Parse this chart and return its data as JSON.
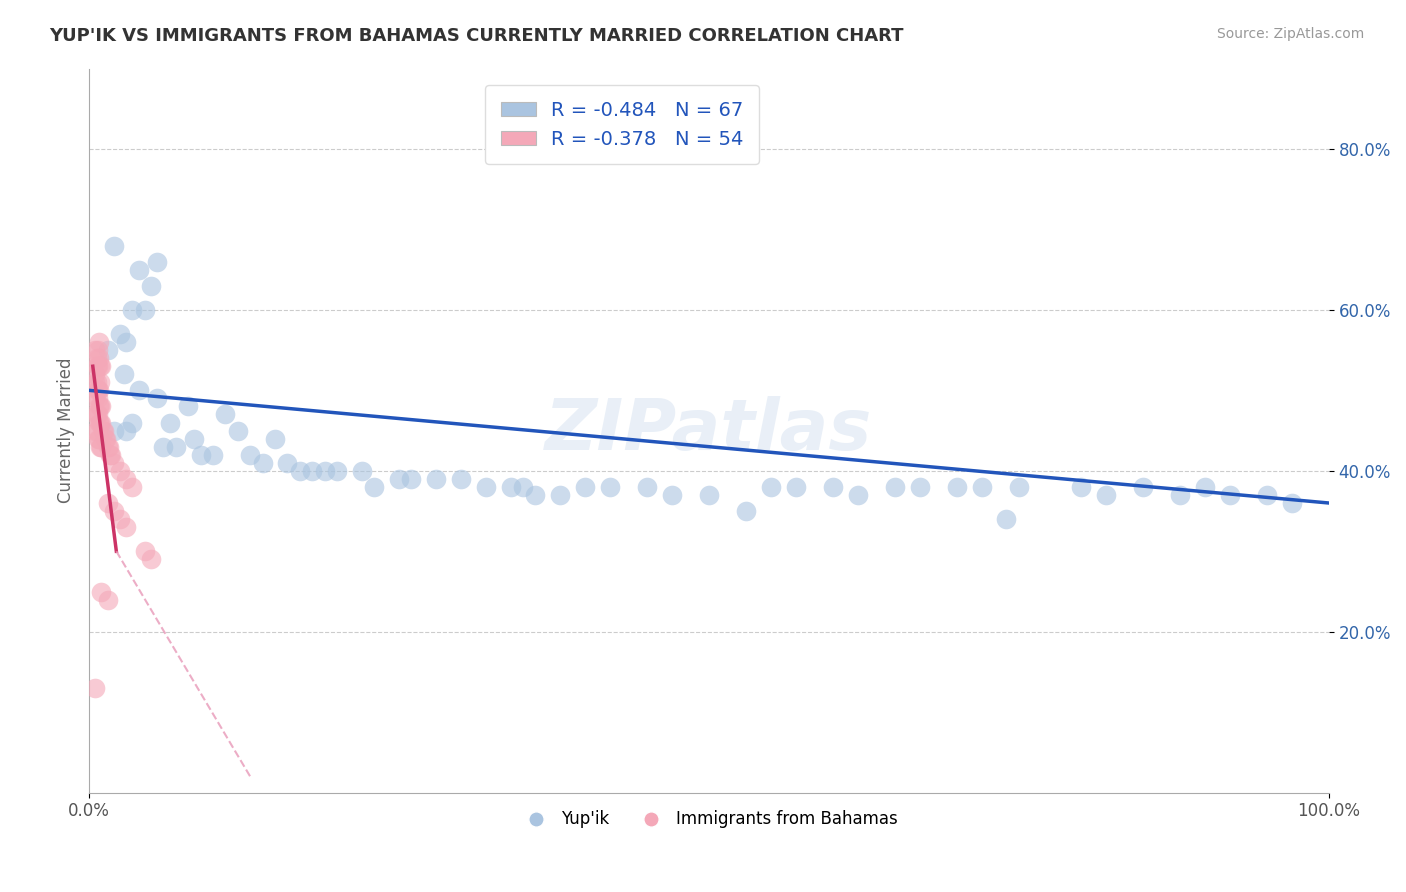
{
  "title": "YUP'IK VS IMMIGRANTS FROM BAHAMAS CURRENTLY MARRIED CORRELATION CHART",
  "source": "Source: ZipAtlas.com",
  "ylabel": "Currently Married",
  "legend_blue_r": "-0.484",
  "legend_blue_n": "67",
  "legend_pink_r": "-0.378",
  "legend_pink_n": "54",
  "legend_label_blue": "Yup'ik",
  "legend_label_pink": "Immigrants from Bahamas",
  "blue_color": "#aac4e0",
  "pink_color": "#f4a8b8",
  "blue_line_color": "#2255bb",
  "pink_line_color": "#cc3366",
  "pink_line_dashed_color": "#e899b8",
  "title_color": "#333333",
  "label_color": "#2255bb",
  "scatter_blue": [
    [
      2.0,
      68
    ],
    [
      4.0,
      65
    ],
    [
      5.0,
      63
    ],
    [
      5.5,
      66
    ],
    [
      3.5,
      60
    ],
    [
      4.5,
      60
    ],
    [
      2.5,
      57
    ],
    [
      3.0,
      56
    ],
    [
      1.5,
      55
    ],
    [
      2.8,
      52
    ],
    [
      4.0,
      50
    ],
    [
      5.5,
      49
    ],
    [
      8.0,
      48
    ],
    [
      11.0,
      47
    ],
    [
      3.5,
      46
    ],
    [
      6.5,
      46
    ],
    [
      2.0,
      45
    ],
    [
      3.0,
      45
    ],
    [
      12.0,
      45
    ],
    [
      8.5,
      44
    ],
    [
      15.0,
      44
    ],
    [
      6.0,
      43
    ],
    [
      7.0,
      43
    ],
    [
      9.0,
      42
    ],
    [
      10.0,
      42
    ],
    [
      13.0,
      42
    ],
    [
      14.0,
      41
    ],
    [
      16.0,
      41
    ],
    [
      17.0,
      40
    ],
    [
      18.0,
      40
    ],
    [
      19.0,
      40
    ],
    [
      20.0,
      40
    ],
    [
      22.0,
      40
    ],
    [
      25.0,
      39
    ],
    [
      26.0,
      39
    ],
    [
      28.0,
      39
    ],
    [
      30.0,
      39
    ],
    [
      23.0,
      38
    ],
    [
      32.0,
      38
    ],
    [
      34.0,
      38
    ],
    [
      35.0,
      38
    ],
    [
      40.0,
      38
    ],
    [
      42.0,
      38
    ],
    [
      45.0,
      38
    ],
    [
      55.0,
      38
    ],
    [
      57.0,
      38
    ],
    [
      60.0,
      38
    ],
    [
      65.0,
      38
    ],
    [
      67.0,
      38
    ],
    [
      70.0,
      38
    ],
    [
      72.0,
      38
    ],
    [
      75.0,
      38
    ],
    [
      80.0,
      38
    ],
    [
      85.0,
      38
    ],
    [
      90.0,
      38
    ],
    [
      36.0,
      37
    ],
    [
      38.0,
      37
    ],
    [
      47.0,
      37
    ],
    [
      50.0,
      37
    ],
    [
      62.0,
      37
    ],
    [
      82.0,
      37
    ],
    [
      88.0,
      37
    ],
    [
      92.0,
      37
    ],
    [
      95.0,
      37
    ],
    [
      97.0,
      36
    ],
    [
      53.0,
      35
    ],
    [
      74.0,
      34
    ]
  ],
  "scatter_pink": [
    [
      0.5,
      55
    ],
    [
      0.6,
      54
    ],
    [
      0.7,
      55
    ],
    [
      0.8,
      56
    ],
    [
      0.5,
      52
    ],
    [
      0.6,
      53
    ],
    [
      0.7,
      53
    ],
    [
      0.8,
      54
    ],
    [
      0.9,
      53
    ],
    [
      1.0,
      53
    ],
    [
      0.5,
      51
    ],
    [
      0.6,
      51
    ],
    [
      0.7,
      50
    ],
    [
      0.8,
      50
    ],
    [
      0.9,
      51
    ],
    [
      0.5,
      49
    ],
    [
      0.6,
      50
    ],
    [
      0.7,
      49
    ],
    [
      0.8,
      48
    ],
    [
      0.9,
      48
    ],
    [
      1.0,
      48
    ],
    [
      0.5,
      47
    ],
    [
      0.6,
      47
    ],
    [
      0.7,
      47
    ],
    [
      0.8,
      46
    ],
    [
      0.9,
      46
    ],
    [
      1.0,
      46
    ],
    [
      1.1,
      45
    ],
    [
      1.2,
      45
    ],
    [
      0.5,
      45
    ],
    [
      0.6,
      45
    ],
    [
      1.3,
      44
    ],
    [
      1.4,
      44
    ],
    [
      0.7,
      44
    ],
    [
      0.8,
      44
    ],
    [
      1.5,
      43
    ],
    [
      1.6,
      43
    ],
    [
      0.9,
      43
    ],
    [
      1.0,
      43
    ],
    [
      1.7,
      42
    ],
    [
      1.8,
      42
    ],
    [
      2.0,
      41
    ],
    [
      2.5,
      40
    ],
    [
      3.0,
      39
    ],
    [
      3.5,
      38
    ],
    [
      1.5,
      36
    ],
    [
      2.0,
      35
    ],
    [
      2.5,
      34
    ],
    [
      3.0,
      33
    ],
    [
      4.5,
      30
    ],
    [
      5.0,
      29
    ],
    [
      1.0,
      25
    ],
    [
      1.5,
      24
    ],
    [
      0.5,
      13
    ]
  ],
  "blue_line": [
    [
      0,
      50
    ],
    [
      100,
      36
    ]
  ],
  "pink_line_solid": [
    [
      0.3,
      53
    ],
    [
      2.2,
      30
    ]
  ],
  "pink_line_dashed": [
    [
      2.2,
      30
    ],
    [
      13.0,
      2
    ]
  ],
  "xmin": 0,
  "xmax": 100,
  "ymin": 0,
  "ymax": 90,
  "yticks": [
    20,
    40,
    60,
    80
  ],
  "ytick_labels": [
    "20.0%",
    "40.0%",
    "60.0%",
    "80.0%"
  ],
  "grid_color": "#cccccc",
  "background_color": "#ffffff"
}
